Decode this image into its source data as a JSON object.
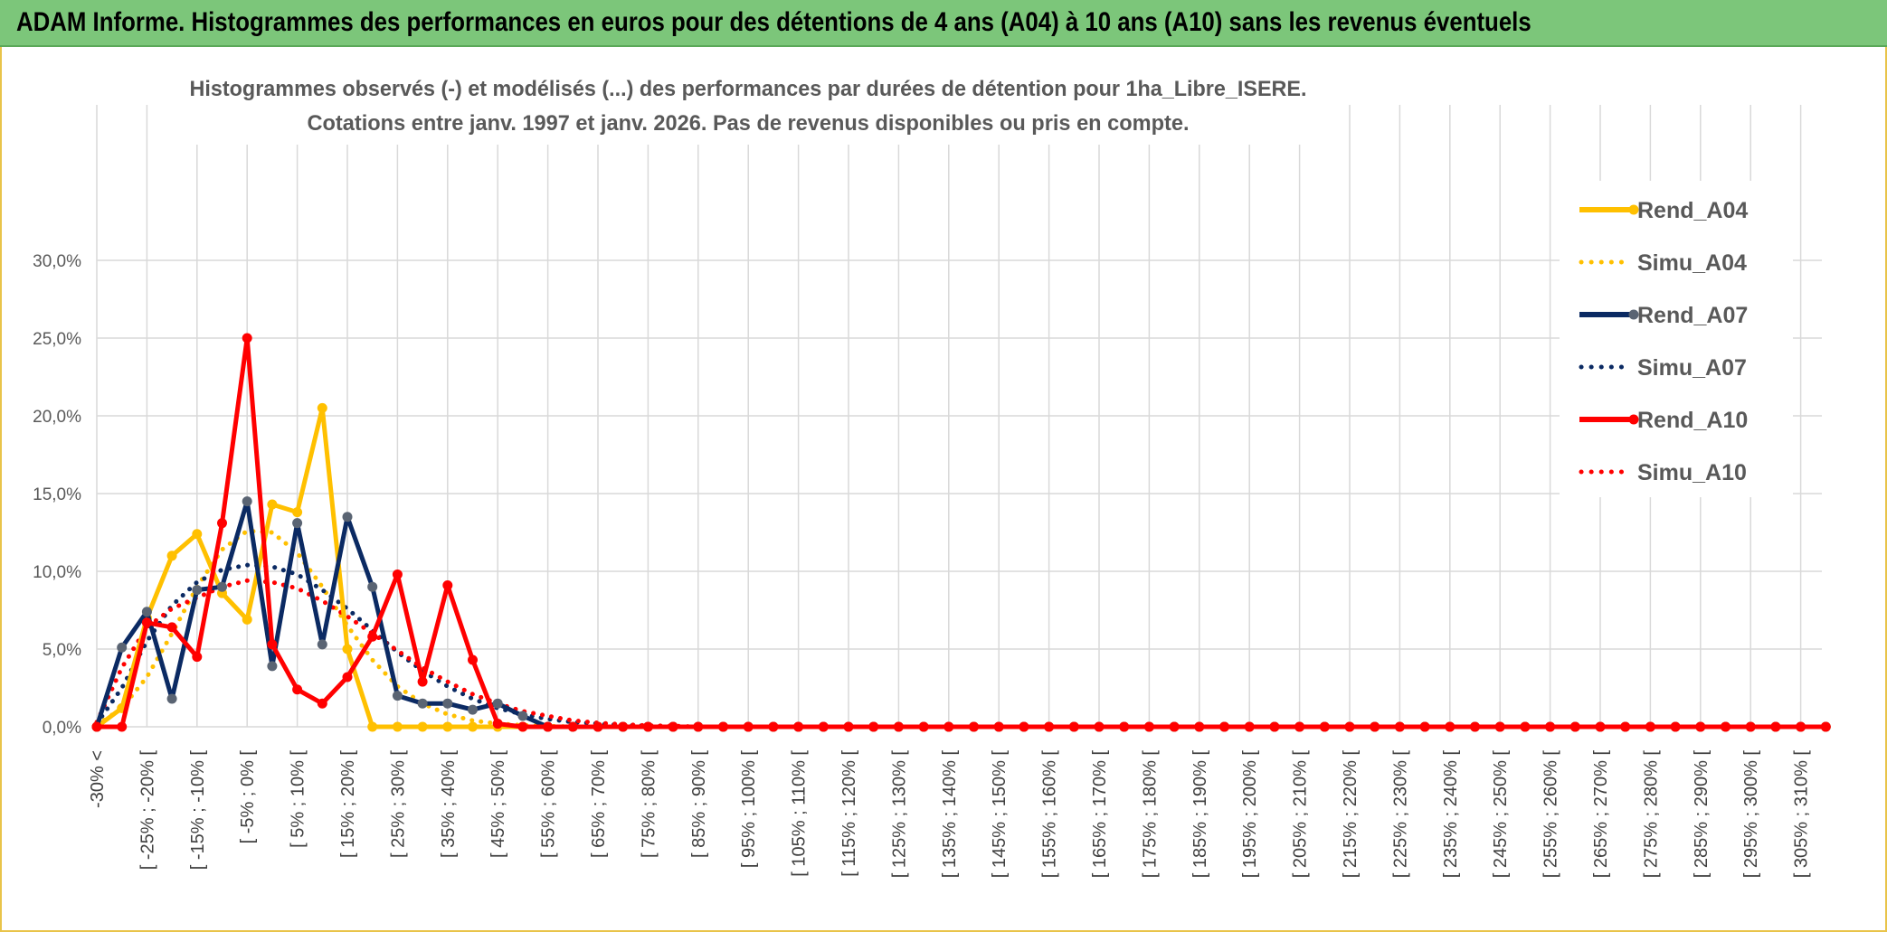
{
  "banner": {
    "title": "ADAM Informe. Histogrammes des performances en euros pour des détentions de 4 ans (A04) à 10 ans (A10) sans les revenus éventuels"
  },
  "colors": {
    "banner_bg": "#7cc67a",
    "frame_border": "#e9c44a",
    "A04": "#ffc000",
    "A07": "#0b2a63",
    "A10": "#ff0000",
    "A07_marker": "#5a6473",
    "grid": "#d9d9d9"
  },
  "chart_data": {
    "type": "line",
    "title_line1": "Histogrammes observés (-) et modélisés (...) des performances par durées de détention pour 1ha_Libre_ISERE.",
    "title_line2": "Cotations entre janv. 1997 et janv. 2026. Pas de revenus disponibles ou pris en compte.",
    "y_ticks": [
      "0,0%",
      "5,0%",
      "10,0%",
      "15,0%",
      "20,0%",
      "25,0%",
      "30,0%"
    ],
    "ylim": [
      0,
      30
    ],
    "grid": true,
    "legend_position": "right",
    "categories": [
      "-30% <",
      "[ -30% ; -25% [",
      "[ -25% ; -20% [",
      "[ -20% ; -15% [",
      "[ -15% ; -10% [",
      "[ -10% ; -5% [",
      "[ -5% ; 0% [",
      "[ 0% ; 5% [",
      "[ 5% ; 10% [",
      "[ 10% ; 15% [",
      "[ 15% ; 20% [",
      "[ 20% ; 25% [",
      "[ 25% ; 30% [",
      "[ 30% ; 35% [",
      "[ 35% ; 40% [",
      "[ 40% ; 45% [",
      "[ 45% ; 50% [",
      "[ 50% ; 55% [",
      "[ 55% ; 60% [",
      "[ 60% ; 65% [",
      "[ 65% ; 70% [",
      "[ 70% ; 75% [",
      "[ 75% ; 80% [",
      "[ 80% ; 85% [",
      "[ 85% ; 90% [",
      "[ 90% ; 95% [",
      "[ 95% ; 100% [",
      "[ 100% ; 105% [",
      "[ 105% ; 110% [",
      "[ 110% ; 115% [",
      "[ 115% ; 120% [",
      "[ 120% ; 125% [",
      "[ 125% ; 130% [",
      "[ 130% ; 135% [",
      "[ 135% ; 140% [",
      "[ 140% ; 145% [",
      "[ 145% ; 150% [",
      "[ 150% ; 155% [",
      "[ 155% ; 160% [",
      "[ 160% ; 165% [",
      "[ 165% ; 170% [",
      "[ 170% ; 175% [",
      "[ 175% ; 180% [",
      "[ 180% ; 185% [",
      "[ 185% ; 190% [",
      "[ 190% ; 195% [",
      "[ 195% ; 200% [",
      "[ 200% ; 205% [",
      "[ 205% ; 210% [",
      "[ 210% ; 215% [",
      "[ 215% ; 220% [",
      "[ 220% ; 225% [",
      "[ 225% ; 230% [",
      "[ 230% ; 235% [",
      "[ 235% ; 240% [",
      "[ 240% ; 245% [",
      "[ 245% ; 250% [",
      "[ 250% ; 255% [",
      "[ 255% ; 260% [",
      "[ 260% ; 265% [",
      "[ 265% ; 270% [",
      "[ 270% ; 275% [",
      "[ 275% ; 280% [",
      "[ 280% ; 285% [",
      "[ 285% ; 290% [",
      "[ 290% ; 295% [",
      "[ 295% ; 300% [",
      "[ 300% ; 305% [",
      "[ 305% ; 310% [",
      "[ 310% ; 315% ["
    ],
    "x_labels_visible": [
      "-30% <",
      "[ -25% ; -20% [",
      "[ -15% ; -10% [",
      "[ -5% ; 0% [",
      "[ 5% ; 10% [",
      "[ 15% ; 20% [",
      "[ 25% ; 30% [",
      "[ 35% ; 40% [",
      "[ 45% ; 50% [",
      "[ 55% ; 60% [",
      "[ 65% ; 70% [",
      "[ 75% ; 80% [",
      "[ 85% ; 90% [",
      "[ 95% ; 100% [",
      "[ 105% ; 110% [",
      "[ 115% ; 120% [",
      "[ 125% ; 130% [",
      "[ 135% ; 140% [",
      "[ 145% ; 150% [",
      "[ 155% ; 160% [",
      "[ 165% ; 170% [",
      "[ 175% ; 180% [",
      "[ 185% ; 190% [",
      "[ 195% ; 200% [",
      "[ 205% ; 210% [",
      "[ 215% ; 220% [",
      "[ 225% ; 230% [",
      "[ 235% ; 240% [",
      "[ 245% ; 250% [",
      "[ 255% ; 260% [",
      "[ 265% ; 270% [",
      "[ 275% ; 280% [",
      "[ 285% ; 290% [",
      "[ 295% ; 300% [",
      "[ 305% ; 310% ["
    ],
    "series": [
      {
        "name": "Rend_A04",
        "style": "solid",
        "color": "#ffc000",
        "values": [
          0,
          1.2,
          7,
          11,
          12.4,
          8.6,
          6.9,
          14.3,
          13.8,
          20.5,
          5,
          0,
          0,
          0,
          0,
          0,
          0,
          0,
          0,
          0,
          0,
          0,
          0,
          0,
          0,
          0,
          0,
          0,
          0,
          0,
          0,
          0,
          0,
          0,
          0,
          0,
          0,
          0,
          0,
          0,
          0,
          0,
          0,
          0,
          0,
          0,
          0,
          0,
          0,
          0,
          0,
          0,
          0,
          0,
          0,
          0,
          0,
          0,
          0,
          0,
          0,
          0,
          0,
          0,
          0,
          0,
          0,
          0,
          0,
          0
        ]
      },
      {
        "name": "Simu_A04",
        "style": "dotted",
        "color": "#ffc000",
        "values": [
          0.1,
          1.2,
          3.2,
          6,
          9,
          11.4,
          12.6,
          12.5,
          11.2,
          9,
          6.5,
          4.3,
          2.6,
          1.5,
          0.8,
          0.4,
          0.2,
          0.1,
          0.05,
          0,
          0,
          0,
          0,
          0,
          0,
          0,
          0,
          0,
          0,
          0,
          0,
          0,
          0,
          0,
          0,
          0,
          0,
          0,
          0,
          0,
          0,
          0,
          0,
          0,
          0,
          0,
          0,
          0,
          0,
          0,
          0,
          0,
          0,
          0,
          0,
          0,
          0,
          0,
          0,
          0,
          0,
          0,
          0,
          0,
          0,
          0,
          0,
          0,
          0,
          0
        ]
      },
      {
        "name": "Rend_A07",
        "style": "solid",
        "color": "#0b2a63",
        "values": [
          0,
          5.1,
          7.4,
          1.8,
          8.8,
          9,
          14.5,
          3.9,
          13.1,
          5.3,
          13.5,
          9,
          2,
          1.5,
          1.5,
          1.1,
          1.5,
          0.7,
          0,
          0,
          0,
          0,
          0,
          0,
          0,
          0,
          0,
          0,
          0,
          0,
          0,
          0,
          0,
          0,
          0,
          0,
          0,
          0,
          0,
          0,
          0,
          0,
          0,
          0,
          0,
          0,
          0,
          0,
          0,
          0,
          0,
          0,
          0,
          0,
          0,
          0,
          0,
          0,
          0,
          0,
          0,
          0,
          0,
          0,
          0,
          0,
          0,
          0,
          0,
          0
        ]
      },
      {
        "name": "Simu_A07",
        "style": "dotted",
        "color": "#0b2a63",
        "values": [
          0.2,
          2.5,
          5.5,
          7.8,
          9.3,
          10.1,
          10.4,
          10.3,
          9.8,
          8.8,
          7.6,
          6.2,
          4.8,
          3.6,
          2.6,
          1.8,
          1.2,
          0.8,
          0.5,
          0.3,
          0.2,
          0.1,
          0.05,
          0,
          0,
          0,
          0,
          0,
          0,
          0,
          0,
          0,
          0,
          0,
          0,
          0,
          0,
          0,
          0,
          0,
          0,
          0,
          0,
          0,
          0,
          0,
          0,
          0,
          0,
          0,
          0,
          0,
          0,
          0,
          0,
          0,
          0,
          0,
          0,
          0,
          0,
          0,
          0,
          0,
          0,
          0,
          0,
          0,
          0,
          0
        ]
      },
      {
        "name": "Rend_A10",
        "style": "solid",
        "color": "#ff0000",
        "values": [
          0,
          0,
          6.7,
          6.4,
          4.5,
          13.1,
          25,
          5.3,
          2.4,
          1.5,
          3.2,
          5.8,
          9.8,
          2.9,
          9.1,
          4.3,
          0.2,
          0,
          0,
          0,
          0,
          0,
          0,
          0,
          0,
          0,
          0,
          0,
          0,
          0,
          0,
          0,
          0,
          0,
          0,
          0,
          0,
          0,
          0,
          0,
          0,
          0,
          0,
          0,
          0,
          0,
          0,
          0,
          0,
          0,
          0,
          0,
          0,
          0,
          0,
          0,
          0,
          0,
          0,
          0,
          0,
          0,
          0,
          0,
          0,
          0,
          0,
          0,
          0,
          0
        ]
      },
      {
        "name": "Simu_A10",
        "style": "dotted",
        "color": "#ff0000",
        "values": [
          0.3,
          3.8,
          6.4,
          7.6,
          8.3,
          9,
          9.4,
          9.3,
          8.9,
          8.1,
          7.1,
          6,
          4.9,
          3.8,
          2.9,
          2.1,
          1.5,
          1,
          0.7,
          0.4,
          0.25,
          0.15,
          0.08,
          0.05,
          0,
          0,
          0,
          0,
          0,
          0,
          0,
          0,
          0,
          0,
          0,
          0,
          0,
          0,
          0,
          0,
          0,
          0,
          0,
          0,
          0,
          0,
          0,
          0,
          0,
          0,
          0,
          0,
          0,
          0,
          0,
          0,
          0,
          0,
          0,
          0,
          0,
          0,
          0,
          0,
          0,
          0,
          0,
          0,
          0,
          0
        ]
      }
    ]
  }
}
